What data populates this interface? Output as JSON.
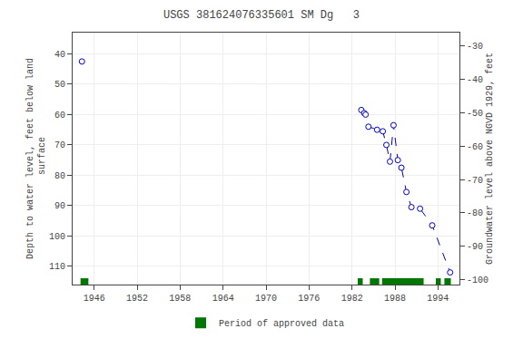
{
  "chart_data": {
    "type": "scatter",
    "title": "USGS 381624076335601 SM Dg   3",
    "ylabel": "Depth to water level, feet below land\n surface",
    "y2label": "Groundwater level above NGVD 1929, feet",
    "xlim": [
      1943,
      1997
    ],
    "xticks": [
      1946,
      1952,
      1958,
      1964,
      1970,
      1976,
      1982,
      1988,
      1994
    ],
    "ylim": [
      116,
      33
    ],
    "yticks": [
      40,
      50,
      60,
      70,
      80,
      90,
      100,
      110
    ],
    "y2lim": [
      -101.5,
      -26
    ],
    "y2ticks": [
      -30,
      -40,
      -50,
      -60,
      -70,
      -80,
      -90,
      -100
    ],
    "grid": true,
    "legend": "bottom",
    "series": [
      {
        "type": "line",
        "line_style": "dashed",
        "color": "#0000cc",
        "x": [
          1983.3,
          1983.7,
          1983.9,
          1984.3,
          1985.5,
          1986.3,
          1986.8,
          1987.3,
          1987.8,
          1988.4,
          1988.9,
          1989.6,
          1990.3,
          1991.5,
          1993.2,
          1995.7
        ],
        "values": [
          58.5,
          59.5,
          60.0,
          64.0,
          65.0,
          65.5,
          70.0,
          75.5,
          63.5,
          75.0,
          77.5,
          85.5,
          90.5,
          91.0,
          96.5,
          112.0
        ]
      },
      {
        "type": "scatter",
        "marker": "open circle",
        "color": "#0000cc",
        "x": [
          1944.3,
          1983.3,
          1983.7,
          1983.9,
          1984.3,
          1985.5,
          1986.3,
          1986.8,
          1987.3,
          1987.8,
          1988.4,
          1988.9,
          1989.6,
          1990.3,
          1991.5,
          1993.2,
          1995.7
        ],
        "values": [
          42.5,
          58.5,
          59.5,
          60.0,
          64.0,
          65.0,
          65.5,
          70.0,
          75.5,
          63.5,
          75.0,
          77.5,
          85.5,
          90.5,
          91.0,
          96.5,
          112.0
        ]
      },
      {
        "type": "span",
        "name": "Period of approved data",
        "color": "#007700",
        "periods": [
          [
            1944.1,
            1945.2
          ],
          [
            1982.8,
            1983.5
          ],
          [
            1984.5,
            1985.8
          ],
          [
            1986.2,
            1992.0
          ],
          [
            1993.7,
            1994.4
          ],
          [
            1994.9,
            1995.8
          ]
        ]
      }
    ]
  }
}
